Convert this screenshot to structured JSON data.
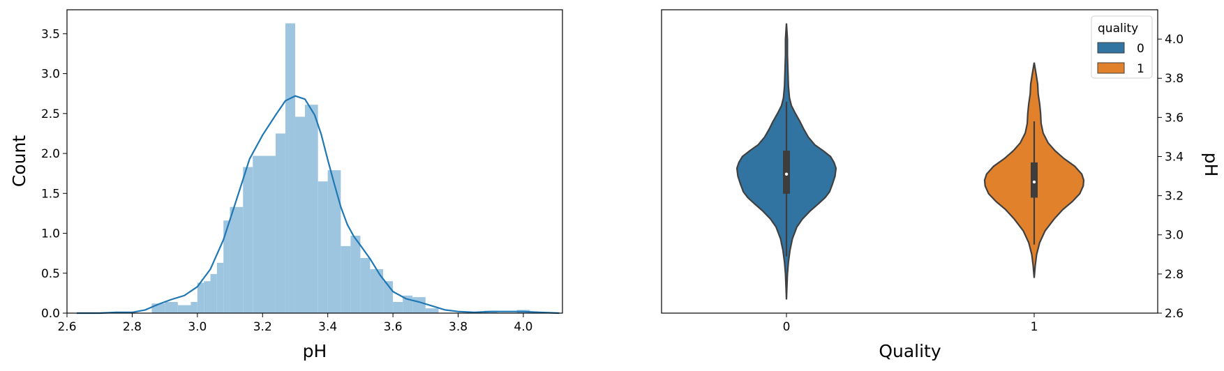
{
  "colors": {
    "hist_fill": "#9ec5e0",
    "kde_line": "#1f77b4",
    "violin_0": "#3274a1",
    "violin_1": "#e1812c",
    "violin_edge": "#3f3f3f",
    "box": "#3d3d3d",
    "median": "#ffffff"
  },
  "chart_data": [
    {
      "type": "histogram",
      "xlabel": "pH",
      "ylabel": "Count",
      "xlim": [
        2.6,
        4.12
      ],
      "ylim": [
        0,
        3.8
      ],
      "xticks": [
        "2.6",
        "2.8",
        "3.0",
        "3.2",
        "3.4",
        "3.6",
        "3.8",
        "4.0"
      ],
      "yticks": [
        "0.0",
        "0.5",
        "1.0",
        "1.5",
        "2.0",
        "2.5",
        "3.0",
        "3.5"
      ],
      "bins": [
        {
          "x0": 2.86,
          "x1": 2.9,
          "value": 0.12
        },
        {
          "x0": 2.9,
          "x1": 2.94,
          "value": 0.14
        },
        {
          "x0": 2.94,
          "x1": 2.98,
          "value": 0.1
        },
        {
          "x0": 2.98,
          "x1": 3.0,
          "value": 0.14
        },
        {
          "x0": 3.0,
          "x1": 3.02,
          "value": 0.38
        },
        {
          "x0": 3.02,
          "x1": 3.04,
          "value": 0.4
        },
        {
          "x0": 3.04,
          "x1": 3.06,
          "value": 0.49
        },
        {
          "x0": 3.06,
          "x1": 3.08,
          "value": 0.63
        },
        {
          "x0": 3.08,
          "x1": 3.1,
          "value": 1.16
        },
        {
          "x0": 3.1,
          "x1": 3.14,
          "value": 1.33
        },
        {
          "x0": 3.14,
          "x1": 3.17,
          "value": 1.83
        },
        {
          "x0": 3.17,
          "x1": 3.24,
          "value": 1.97
        },
        {
          "x0": 3.24,
          "x1": 3.27,
          "value": 2.25
        },
        {
          "x0": 3.27,
          "x1": 3.3,
          "value": 3.63
        },
        {
          "x0": 3.3,
          "x1": 3.33,
          "value": 2.46
        },
        {
          "x0": 3.33,
          "x1": 3.37,
          "value": 2.61
        },
        {
          "x0": 3.37,
          "x1": 3.4,
          "value": 1.65
        },
        {
          "x0": 3.4,
          "x1": 3.44,
          "value": 1.79
        },
        {
          "x0": 3.44,
          "x1": 3.47,
          "value": 0.84
        },
        {
          "x0": 3.47,
          "x1": 3.5,
          "value": 0.97
        },
        {
          "x0": 3.5,
          "x1": 3.53,
          "value": 0.69
        },
        {
          "x0": 3.53,
          "x1": 3.57,
          "value": 0.55
        },
        {
          "x0": 3.57,
          "x1": 3.6,
          "value": 0.4
        },
        {
          "x0": 3.6,
          "x1": 3.63,
          "value": 0.14
        },
        {
          "x0": 3.63,
          "x1": 3.66,
          "value": 0.22
        },
        {
          "x0": 3.66,
          "x1": 3.7,
          "value": 0.2
        },
        {
          "x0": 3.7,
          "x1": 3.74,
          "value": 0.06
        },
        {
          "x0": 3.88,
          "x1": 3.92,
          "value": 0.03
        },
        {
          "x0": 3.98,
          "x1": 4.02,
          "value": 0.04
        }
      ],
      "kde": {
        "x": [
          2.63,
          2.7,
          2.75,
          2.8,
          2.84,
          2.88,
          2.92,
          2.96,
          3.0,
          3.04,
          3.08,
          3.12,
          3.16,
          3.2,
          3.24,
          3.27,
          3.3,
          3.33,
          3.36,
          3.38,
          3.4,
          3.42,
          3.44,
          3.46,
          3.48,
          3.5,
          3.53,
          3.56,
          3.6,
          3.64,
          3.68,
          3.72,
          3.76,
          3.8,
          3.85,
          3.9,
          3.95,
          4.0,
          4.05,
          4.11
        ],
        "y": [
          0.0,
          0.0,
          0.01,
          0.01,
          0.04,
          0.11,
          0.17,
          0.22,
          0.33,
          0.55,
          0.92,
          1.42,
          1.93,
          2.23,
          2.48,
          2.66,
          2.72,
          2.68,
          2.48,
          2.24,
          1.92,
          1.62,
          1.33,
          1.11,
          0.96,
          0.85,
          0.68,
          0.48,
          0.27,
          0.18,
          0.14,
          0.09,
          0.04,
          0.02,
          0.01,
          0.02,
          0.02,
          0.02,
          0.01,
          0.0
        ]
      }
    },
    {
      "type": "violin",
      "xlabel": "Quality",
      "ylabel": "pH",
      "ylim": [
        2.6,
        4.15
      ],
      "categories": [
        "0",
        "1"
      ],
      "xticks": [
        "0",
        "1"
      ],
      "yticks": [
        "2.6",
        "2.8",
        "3.0",
        "3.2",
        "3.4",
        "3.6",
        "3.8",
        "4.0"
      ],
      "legend": {
        "title": "quality",
        "entries": [
          "0",
          "1"
        ],
        "position": "top-right"
      },
      "violins": [
        {
          "category": "0",
          "min": 2.67,
          "max": 4.08,
          "q1": 3.21,
          "median": 3.31,
          "q3": 3.43,
          "whisker_low": 2.89,
          "whisker_high": 3.68,
          "profile": [
            [
              2.67,
              0.0
            ],
            [
              2.74,
              0.01
            ],
            [
              2.8,
              0.02
            ],
            [
              2.86,
              0.04
            ],
            [
              2.92,
              0.07
            ],
            [
              2.98,
              0.12
            ],
            [
              3.04,
              0.21
            ],
            [
              3.08,
              0.32
            ],
            [
              3.12,
              0.47
            ],
            [
              3.16,
              0.65
            ],
            [
              3.19,
              0.78
            ],
            [
              3.22,
              0.87
            ],
            [
              3.26,
              0.93
            ],
            [
              3.3,
              0.98
            ],
            [
              3.34,
              1.0
            ],
            [
              3.37,
              0.96
            ],
            [
              3.4,
              0.89
            ],
            [
              3.43,
              0.74
            ],
            [
              3.46,
              0.57
            ],
            [
              3.5,
              0.44
            ],
            [
              3.54,
              0.35
            ],
            [
              3.58,
              0.27
            ],
            [
              3.62,
              0.18
            ],
            [
              3.66,
              0.1
            ],
            [
              3.7,
              0.06
            ],
            [
              3.76,
              0.04
            ],
            [
              3.84,
              0.03
            ],
            [
              3.92,
              0.02
            ],
            [
              4.0,
              0.02
            ],
            [
              4.08,
              0.0
            ]
          ]
        },
        {
          "category": "1",
          "min": 2.78,
          "max": 3.88,
          "q1": 3.19,
          "median": 3.27,
          "q3": 3.37,
          "whisker_low": 2.95,
          "whisker_high": 3.58,
          "profile": [
            [
              2.78,
              0.0
            ],
            [
              2.84,
              0.02
            ],
            [
              2.9,
              0.05
            ],
            [
              2.96,
              0.11
            ],
            [
              3.02,
              0.22
            ],
            [
              3.08,
              0.4
            ],
            [
              3.13,
              0.58
            ],
            [
              3.17,
              0.77
            ],
            [
              3.21,
              0.92
            ],
            [
              3.25,
              0.99
            ],
            [
              3.28,
              1.0
            ],
            [
              3.31,
              0.96
            ],
            [
              3.35,
              0.82
            ],
            [
              3.39,
              0.6
            ],
            [
              3.43,
              0.42
            ],
            [
              3.47,
              0.28
            ],
            [
              3.52,
              0.18
            ],
            [
              3.57,
              0.14
            ],
            [
              3.62,
              0.13
            ],
            [
              3.67,
              0.11
            ],
            [
              3.72,
              0.08
            ],
            [
              3.77,
              0.07
            ],
            [
              3.82,
              0.04
            ],
            [
              3.88,
              0.0
            ]
          ]
        }
      ]
    }
  ]
}
